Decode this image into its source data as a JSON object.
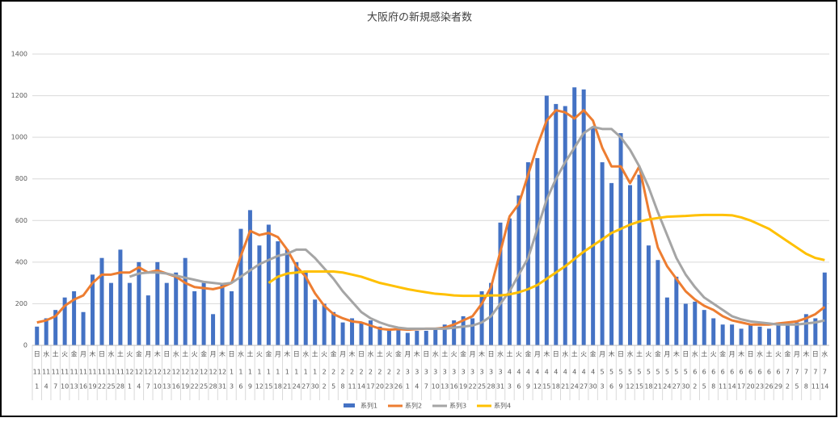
{
  "chart_data": {
    "type": "bar-line",
    "title": "大阪府の新規感染者数",
    "categories": [
      {
        "weekday": "日",
        "month": "11",
        "day": "1"
      },
      {
        "weekday": "水",
        "month": "11",
        "day": "4"
      },
      {
        "weekday": "土",
        "month": "11",
        "day": "7"
      },
      {
        "weekday": "火",
        "month": "11",
        "day": "10"
      },
      {
        "weekday": "金",
        "month": "11",
        "day": "13"
      },
      {
        "weekday": "月",
        "month": "11",
        "day": "16"
      },
      {
        "weekday": "木",
        "month": "11",
        "day": "19"
      },
      {
        "weekday": "日",
        "month": "11",
        "day": "22"
      },
      {
        "weekday": "水",
        "month": "11",
        "day": "25"
      },
      {
        "weekday": "土",
        "month": "11",
        "day": "28"
      },
      {
        "weekday": "火",
        "month": "12",
        "day": "1"
      },
      {
        "weekday": "金",
        "month": "12",
        "day": "4"
      },
      {
        "weekday": "月",
        "month": "12",
        "day": "7"
      },
      {
        "weekday": "木",
        "month": "12",
        "day": "10"
      },
      {
        "weekday": "日",
        "month": "12",
        "day": "13"
      },
      {
        "weekday": "水",
        "month": "12",
        "day": "16"
      },
      {
        "weekday": "土",
        "month": "12",
        "day": "19"
      },
      {
        "weekday": "火",
        "month": "12",
        "day": "22"
      },
      {
        "weekday": "金",
        "month": "12",
        "day": "25"
      },
      {
        "weekday": "月",
        "month": "12",
        "day": "28"
      },
      {
        "weekday": "木",
        "month": "12",
        "day": "31"
      },
      {
        "weekday": "日",
        "month": "1",
        "day": "3"
      },
      {
        "weekday": "水",
        "month": "1",
        "day": "6"
      },
      {
        "weekday": "土",
        "month": "1",
        "day": "9"
      },
      {
        "weekday": "火",
        "month": "1",
        "day": "12"
      },
      {
        "weekday": "金",
        "month": "1",
        "day": "15"
      },
      {
        "weekday": "月",
        "month": "1",
        "day": "18"
      },
      {
        "weekday": "木",
        "month": "1",
        "day": "21"
      },
      {
        "weekday": "日",
        "month": "1",
        "day": "24"
      },
      {
        "weekday": "水",
        "month": "1",
        "day": "27"
      },
      {
        "weekday": "土",
        "month": "1",
        "day": "30"
      },
      {
        "weekday": "火",
        "month": "2",
        "day": "2"
      },
      {
        "weekday": "金",
        "month": "2",
        "day": "5"
      },
      {
        "weekday": "月",
        "month": "2",
        "day": "8"
      },
      {
        "weekday": "木",
        "month": "2",
        "day": "11"
      },
      {
        "weekday": "日",
        "month": "2",
        "day": "14"
      },
      {
        "weekday": "水",
        "month": "2",
        "day": "17"
      },
      {
        "weekday": "土",
        "month": "2",
        "day": "20"
      },
      {
        "weekday": "火",
        "month": "2",
        "day": "23"
      },
      {
        "weekday": "金",
        "month": "2",
        "day": "26"
      },
      {
        "weekday": "月",
        "month": "3",
        "day": "1"
      },
      {
        "weekday": "木",
        "month": "3",
        "day": "4"
      },
      {
        "weekday": "日",
        "month": "3",
        "day": "7"
      },
      {
        "weekday": "水",
        "month": "3",
        "day": "10"
      },
      {
        "weekday": "土",
        "month": "3",
        "day": "13"
      },
      {
        "weekday": "火",
        "month": "3",
        "day": "16"
      },
      {
        "weekday": "金",
        "month": "3",
        "day": "19"
      },
      {
        "weekday": "月",
        "month": "3",
        "day": "22"
      },
      {
        "weekday": "木",
        "month": "3",
        "day": "25"
      },
      {
        "weekday": "日",
        "month": "3",
        "day": "28"
      },
      {
        "weekday": "水",
        "month": "3",
        "day": "31"
      },
      {
        "weekday": "土",
        "month": "4",
        "day": "3"
      },
      {
        "weekday": "火",
        "month": "4",
        "day": "6"
      },
      {
        "weekday": "金",
        "month": "4",
        "day": "9"
      },
      {
        "weekday": "月",
        "month": "4",
        "day": "12"
      },
      {
        "weekday": "木",
        "month": "4",
        "day": "15"
      },
      {
        "weekday": "日",
        "month": "4",
        "day": "18"
      },
      {
        "weekday": "水",
        "month": "4",
        "day": "21"
      },
      {
        "weekday": "土",
        "month": "4",
        "day": "24"
      },
      {
        "weekday": "火",
        "month": "4",
        "day": "27"
      },
      {
        "weekday": "金",
        "month": "4",
        "day": "30"
      },
      {
        "weekday": "月",
        "month": "5",
        "day": "3"
      },
      {
        "weekday": "木",
        "month": "5",
        "day": "6"
      },
      {
        "weekday": "日",
        "month": "5",
        "day": "9"
      },
      {
        "weekday": "水",
        "month": "5",
        "day": "12"
      },
      {
        "weekday": "土",
        "month": "5",
        "day": "15"
      },
      {
        "weekday": "火",
        "month": "5",
        "day": "18"
      },
      {
        "weekday": "金",
        "month": "5",
        "day": "21"
      },
      {
        "weekday": "月",
        "month": "5",
        "day": "24"
      },
      {
        "weekday": "木",
        "month": "5",
        "day": "27"
      },
      {
        "weekday": "日",
        "month": "5",
        "day": "30"
      },
      {
        "weekday": "水",
        "month": "6",
        "day": "2"
      },
      {
        "weekday": "土",
        "month": "6",
        "day": "5"
      },
      {
        "weekday": "火",
        "month": "6",
        "day": "8"
      },
      {
        "weekday": "金",
        "month": "6",
        "day": "11"
      },
      {
        "weekday": "月",
        "month": "6",
        "day": "14"
      },
      {
        "weekday": "木",
        "month": "6",
        "day": "17"
      },
      {
        "weekday": "日",
        "month": "6",
        "day": "20"
      },
      {
        "weekday": "水",
        "month": "6",
        "day": "23"
      },
      {
        "weekday": "土",
        "month": "6",
        "day": "26"
      },
      {
        "weekday": "火",
        "month": "6",
        "day": "29"
      },
      {
        "weekday": "金",
        "month": "7",
        "day": "2"
      },
      {
        "weekday": "月",
        "month": "7",
        "day": "5"
      },
      {
        "weekday": "木",
        "month": "7",
        "day": "8"
      },
      {
        "weekday": "日",
        "month": "7",
        "day": "11"
      },
      {
        "weekday": "水",
        "month": "7",
        "day": "14"
      }
    ],
    "series": [
      {
        "name": "系列1",
        "type": "bar",
        "color": "#4472c4",
        "values": [
          90,
          130,
          170,
          230,
          260,
          160,
          340,
          420,
          300,
          460,
          300,
          400,
          240,
          400,
          300,
          350,
          420,
          260,
          300,
          150,
          300,
          260,
          560,
          650,
          480,
          580,
          500,
          460,
          400,
          360,
          220,
          200,
          160,
          110,
          130,
          110,
          120,
          90,
          70,
          80,
          60,
          70,
          70,
          80,
          100,
          120,
          140,
          130,
          260,
          300,
          590,
          610,
          720,
          880,
          900,
          1200,
          1160,
          1150,
          1240,
          1230,
          1050,
          880,
          780,
          1020,
          770,
          820,
          480,
          410,
          230,
          330,
          200,
          210,
          170,
          130,
          100,
          100,
          80,
          100,
          90,
          80,
          110,
          100,
          110,
          150,
          130,
          350
        ]
      },
      {
        "name": "系列2",
        "type": "line",
        "color": "#ed7d31",
        "values": [
          110,
          120,
          140,
          190,
          220,
          240,
          300,
          340,
          340,
          350,
          350,
          375,
          350,
          360,
          345,
          330,
          300,
          280,
          275,
          270,
          280,
          300,
          430,
          550,
          530,
          540,
          520,
          460,
          380,
          330,
          250,
          190,
          150,
          130,
          115,
          110,
          95,
          80,
          75,
          78,
          75,
          78,
          80,
          80,
          85,
          100,
          120,
          140,
          200,
          280,
          450,
          620,
          680,
          820,
          960,
          1080,
          1130,
          1120,
          1090,
          1130,
          1080,
          950,
          860,
          860,
          780,
          860,
          650,
          470,
          380,
          320,
          260,
          220,
          190,
          170,
          140,
          120,
          110,
          100,
          100,
          100,
          105,
          110,
          115,
          130,
          150,
          185
        ]
      },
      {
        "name": "系列3",
        "type": "line",
        "color": "#a5a5a5",
        "values": [
          null,
          null,
          null,
          null,
          null,
          null,
          null,
          null,
          null,
          null,
          330,
          345,
          350,
          350,
          345,
          335,
          325,
          315,
          305,
          300,
          295,
          300,
          330,
          360,
          390,
          410,
          430,
          440,
          460,
          460,
          420,
          370,
          320,
          260,
          210,
          160,
          130,
          110,
          95,
          85,
          80,
          80,
          80,
          80,
          80,
          85,
          90,
          95,
          110,
          140,
          200,
          260,
          340,
          420,
          560,
          700,
          800,
          880,
          950,
          1020,
          1050,
          1040,
          1040,
          1000,
          940,
          860,
          760,
          640,
          530,
          420,
          340,
          280,
          230,
          200,
          170,
          140,
          125,
          115,
          110,
          105,
          100,
          100,
          100,
          105,
          110,
          120
        ]
      },
      {
        "name": "系列4",
        "type": "line",
        "color": "#ffc000",
        "values": [
          null,
          null,
          null,
          null,
          null,
          null,
          null,
          null,
          null,
          null,
          null,
          null,
          null,
          null,
          null,
          null,
          null,
          null,
          null,
          null,
          null,
          null,
          null,
          null,
          null,
          300,
          330,
          345,
          350,
          355,
          355,
          355,
          355,
          350,
          340,
          330,
          315,
          300,
          290,
          280,
          270,
          262,
          255,
          248,
          245,
          240,
          238,
          238,
          238,
          240,
          240,
          245,
          255,
          270,
          290,
          320,
          350,
          380,
          415,
          450,
          480,
          510,
          540,
          560,
          580,
          595,
          605,
          612,
          618,
          620,
          622,
          625,
          627,
          627,
          627,
          625,
          615,
          600,
          580,
          560,
          530,
          500,
          470,
          440,
          420,
          410
        ]
      }
    ],
    "ylim": [
      0,
      1400
    ],
    "yticks": [
      0,
      200,
      400,
      600,
      800,
      1000,
      1200,
      1400
    ],
    "grid": true,
    "legend": "bottom"
  }
}
